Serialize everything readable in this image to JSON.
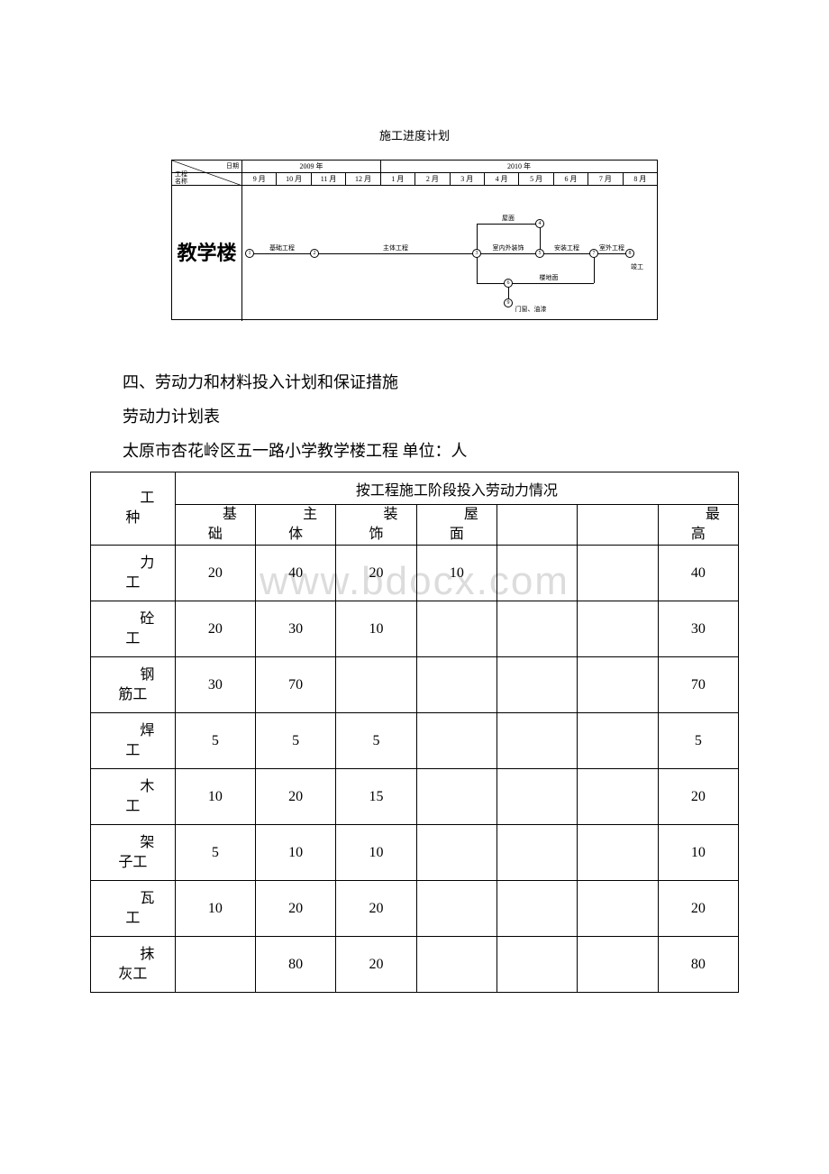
{
  "gantt": {
    "title": "施工进度计划",
    "corner_date": "日期",
    "corner_name1": "工程",
    "corner_name2": "名称",
    "year1": "2009 年",
    "year2": "2010 年",
    "months": [
      "9 月",
      "10 月",
      "11 月",
      "12 月",
      "1 月",
      "2 月",
      "3 月",
      "4 月",
      "5 月",
      "6 月",
      "7 月",
      "8 月"
    ],
    "sidebar": "教学楼",
    "activities": {
      "a1": "基础工程",
      "a2": "主体工程",
      "a3": "屋面",
      "a4": "室内外装饰",
      "a5": "安装工程",
      "a6": "室外工程",
      "a7": "楼地面",
      "a8": "门窗、油漆",
      "a9": "竣工"
    },
    "nodes": [
      "1",
      "2",
      "3",
      "4",
      "5",
      "6",
      "7",
      "8",
      "9"
    ],
    "colors": {
      "line": "#000000",
      "bg": "#ffffff"
    }
  },
  "section4_title": "四、劳动力和材料投入计划和保证措施",
  "labor_table_title": "劳动力计划表",
  "labor_table_sub": "太原市杏花岭区五一路小学教学楼工程 单位：人",
  "watermark": "www.bdocx.com",
  "table": {
    "header_worker": "工种",
    "header_merged": "按工程施工阶段投入劳动力情况",
    "stages": [
      "基础",
      "主体",
      "装饰",
      "屋面",
      "",
      "",
      "最高"
    ],
    "rows": [
      {
        "name": "力工",
        "v": [
          "20",
          "40",
          "20",
          "10",
          "",
          "",
          "40"
        ]
      },
      {
        "name": "砼工",
        "v": [
          "20",
          "30",
          "10",
          "",
          "",
          "",
          "30"
        ]
      },
      {
        "name": "钢筋工",
        "v": [
          "30",
          "70",
          "",
          "",
          "",
          "",
          "70"
        ]
      },
      {
        "name": "焊工",
        "v": [
          "5",
          "5",
          "5",
          "",
          "",
          "",
          "5"
        ]
      },
      {
        "name": "木工",
        "v": [
          "10",
          "20",
          "15",
          "",
          "",
          "",
          "20"
        ]
      },
      {
        "name": "架子工",
        "v": [
          "5",
          "10",
          "10",
          "",
          "",
          "",
          "10"
        ]
      },
      {
        "name": "瓦工",
        "v": [
          "10",
          "20",
          "20",
          "",
          "",
          "",
          "20"
        ]
      },
      {
        "name": "抹灰工",
        "v": [
          "",
          "80",
          "20",
          "",
          "",
          "",
          "80"
        ]
      }
    ],
    "border_color": "#000000",
    "font_size": 16
  }
}
